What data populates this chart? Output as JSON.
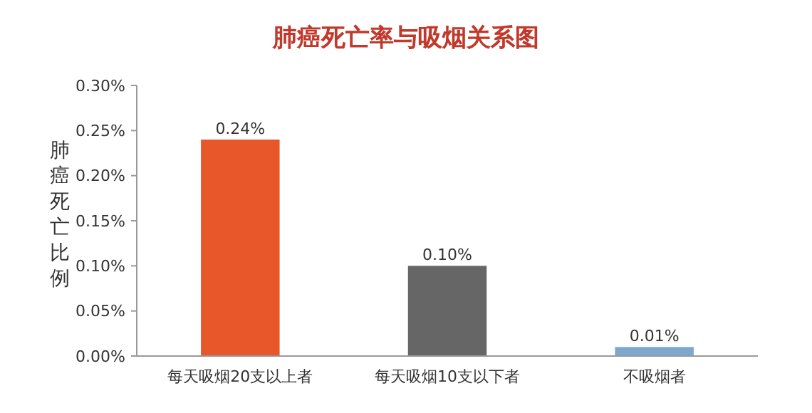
{
  "chart_data": {
    "type": "bar",
    "title": "肺癌死亡率与吸烟关系图",
    "ylabel": "肺癌死亡比例",
    "categories": [
      "每天吸烟20支以上者",
      "每天吸烟10支以下者",
      "不吸烟者"
    ],
    "values": [
      0.24,
      0.1,
      0.01
    ],
    "colors": [
      "#e8572a",
      "#666666",
      "#7da7cf"
    ],
    "value_labels": [
      "0.24%",
      "0.10%",
      "0.01%"
    ],
    "ylim": [
      0,
      0.3
    ],
    "yticks": [
      {
        "value": 0,
        "label": "0.00%"
      },
      {
        "value": 0.05,
        "label": "0.05%"
      },
      {
        "value": 0.1,
        "label": "0.10%"
      },
      {
        "value": 0.15,
        "label": "0.15%"
      },
      {
        "value": 0.2,
        "label": "0.20%"
      },
      {
        "value": 0.25,
        "label": "0.25%"
      },
      {
        "value": 0.3,
        "label": "0.30%"
      }
    ],
    "grid": false
  }
}
